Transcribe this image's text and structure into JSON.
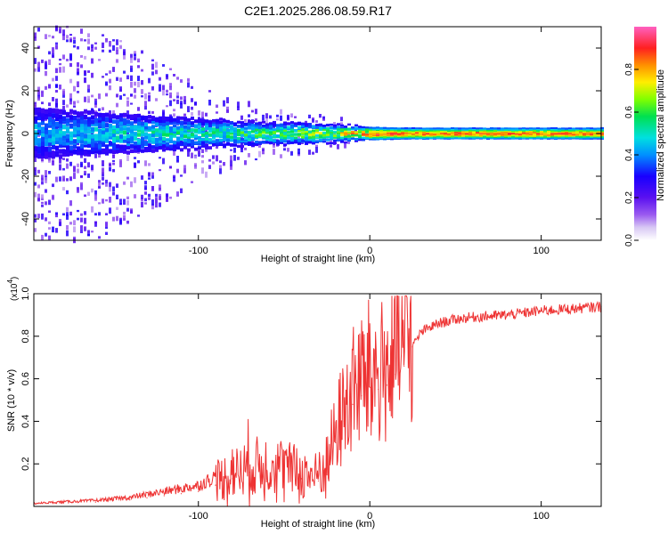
{
  "title": "C2E1.2025.286.08.59.R17",
  "chart_data": [
    {
      "type": "heatmap",
      "name": "spectrogram",
      "xlabel": "Height of straight line (km)",
      "ylabel": "Frequency (Hz)",
      "xlim": [
        -196,
        135
      ],
      "ylim": [
        -50,
        50
      ],
      "xticks": [
        -100,
        0,
        100
      ],
      "xtick_labels": [
        "-100",
        "0",
        "100"
      ],
      "yticks": [
        -40,
        -20,
        0,
        20,
        40
      ],
      "ytick_labels": [
        "-40",
        "-20",
        "0",
        "20",
        "40"
      ],
      "description_points": {
        "x_km": [
          -196,
          -180,
          -160,
          -140,
          -120,
          -100,
          -80,
          -60,
          -40,
          -20,
          0,
          20,
          40,
          60,
          80,
          100,
          120,
          135
        ],
        "band_halfwidth_hz": [
          12,
          11,
          10,
          9,
          8,
          7,
          6,
          5,
          5,
          4,
          3,
          2.6,
          2.6,
          2.6,
          2.6,
          2.6,
          2.6,
          2.6
        ],
        "peak_amplitude": [
          0.3,
          0.32,
          0.35,
          0.38,
          0.4,
          0.42,
          0.45,
          0.5,
          0.55,
          0.62,
          0.85,
          0.8,
          0.8,
          0.8,
          0.8,
          0.8,
          0.8,
          0.8
        ],
        "scatter_spread_hz": [
          50,
          50,
          50,
          42,
          34,
          22,
          16,
          12,
          10,
          8,
          2,
          0,
          0,
          0,
          0,
          0,
          0,
          0
        ]
      },
      "colorbar": {
        "label": "Normalized spectral amplitude",
        "range": [
          0,
          1
        ],
        "ticks": [
          0.0,
          0.2,
          0.4,
          0.6,
          0.8
        ],
        "tick_labels": [
          "0.0",
          "0.2",
          "0.4",
          "0.6",
          "0.8"
        ]
      }
    },
    {
      "type": "line",
      "name": "snr",
      "xlabel": "Height of straight line (km)",
      "ylabel": "SNR (10 * v/v)",
      "scale_label": "(x10",
      "scale_exponent": "4",
      "scale_close": ")",
      "xlim": [
        -196,
        135
      ],
      "ylim": [
        0,
        1.0
      ],
      "xticks": [
        -100,
        0,
        100
      ],
      "xtick_labels": [
        "-100",
        "0",
        "100"
      ],
      "yticks": [
        0.2,
        0.4,
        0.6,
        0.8,
        1.0
      ],
      "ytick_labels": [
        "0.2",
        "0.4",
        "0.6",
        "0.8",
        "1.0"
      ],
      "color": "#ee3333",
      "series": [
        {
          "name": "SNR",
          "x": [
            -196,
            -180,
            -160,
            -140,
            -130,
            -120,
            -110,
            -100,
            -90,
            -80,
            -70,
            -60,
            -50,
            -40,
            -35,
            -30,
            -25,
            -20,
            -15,
            -10,
            -5,
            0,
            5,
            10,
            15,
            20,
            25,
            30,
            40,
            50,
            60,
            80,
            100,
            120,
            135
          ],
          "y": [
            0.01,
            0.015,
            0.02,
            0.03,
            0.04,
            0.05,
            0.06,
            0.07,
            0.1,
            0.13,
            0.16,
            0.17,
            0.16,
            0.13,
            0.12,
            0.12,
            0.18,
            0.3,
            0.4,
            0.48,
            0.52,
            0.56,
            0.55,
            0.57,
            0.62,
            0.66,
            0.75,
            0.82,
            0.86,
            0.88,
            0.89,
            0.9,
            0.92,
            0.93,
            0.94
          ]
        }
      ]
    }
  ]
}
